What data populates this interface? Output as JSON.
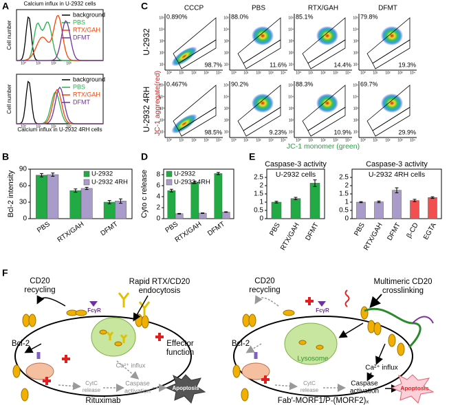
{
  "panel_labels": [
    "A",
    "B",
    "C",
    "D",
    "E",
    "F"
  ],
  "calcium_histograms": {
    "top_title": "Calcium influx in U-2932 cells",
    "bottom_xlabel": "Calcium influx in U-2932 4RH cells",
    "ylabel": "Cell number",
    "xticks": [
      "10⁰",
      "10¹",
      "10²",
      "10³"
    ],
    "legend": [
      {
        "name": "background",
        "color": "#000000"
      },
      {
        "name": "PBS",
        "color": "#22b14c"
      },
      {
        "name": "RTX/GAH",
        "color": "#ff4000"
      },
      {
        "name": "DFMT",
        "color": "#7030a0"
      }
    ]
  },
  "flow_cytometry": {
    "columns": [
      "CCCP",
      "PBS",
      "RTX/GAH",
      "DFMT"
    ],
    "rows": [
      "U-2932",
      "U-2932 4RH"
    ],
    "upper_left": [
      [
        "0.890%",
        "88.0%",
        "85.1%",
        "79.8%"
      ],
      [
        "0.467%",
        "90.2%",
        "88.3%",
        "69.7%"
      ]
    ],
    "lower_right": [
      [
        "98.7%",
        "11.6%",
        "14.4%",
        "19.3%"
      ],
      [
        "98.5%",
        "9.23%",
        "10.9%",
        "29.9%"
      ]
    ],
    "ylabel": "JC-1 aggregate(red)",
    "xlabel": "JC-1 monomer (green)",
    "xticks": [
      "10⁰",
      "10¹",
      "10²",
      "10³",
      "10⁴"
    ],
    "yticks": [
      "10¹",
      "10²",
      "10³",
      "10⁴",
      "10⁵"
    ]
  },
  "chart_data": [
    {
      "type": "bar",
      "ylabel": "Bcl-2 intensity",
      "categories": [
        "PBS",
        "RTX/GAH",
        "DFMT"
      ],
      "series": [
        {
          "name": "U-2932",
          "color": "#22aa44",
          "values": [
            79,
            51,
            30
          ],
          "errors": [
            3,
            3,
            3
          ]
        },
        {
          "name": "U-2932 4RH",
          "color": "#a99ccb",
          "values": [
            80,
            55,
            32
          ],
          "errors": [
            3,
            2,
            4
          ]
        }
      ],
      "ylim": [
        0,
        90
      ],
      "yticks": [
        0,
        30,
        60,
        90
      ],
      "legend": "upper right"
    },
    {
      "type": "bar",
      "ylabel": "Cyto c release",
      "categories": [
        "PBS",
        "RTX/GAH",
        "DFMT"
      ],
      "series": [
        {
          "name": "U-2932",
          "color": "#22aa44",
          "values": [
            5.1,
            6.6,
            8.2
          ],
          "errors": [
            0.25,
            0.2,
            0.2
          ]
        },
        {
          "name": "U-2932 4RH",
          "color": "#a99ccb",
          "values": [
            0.9,
            1.0,
            1.2
          ],
          "errors": [
            0.05,
            0.05,
            0.05
          ]
        }
      ],
      "ylim": [
        0,
        9
      ],
      "yticks": [
        0,
        2,
        4,
        6,
        8
      ],
      "legend": "upper left"
    },
    {
      "type": "bar",
      "title": "Caspase-3 activity",
      "subtitle": "U-2932 cells",
      "categories": [
        "PBS",
        "RTX/GAH",
        "DFMT"
      ],
      "values": [
        1.0,
        1.22,
        2.15
      ],
      "errors": [
        0.05,
        0.07,
        0.2
      ],
      "colors": [
        "#22aa44",
        "#22aa44",
        "#22aa44"
      ],
      "ylim": [
        0,
        3
      ],
      "yticks": [
        0,
        0.5,
        1,
        1.5,
        2,
        2.5
      ]
    },
    {
      "type": "bar",
      "title": "Caspase-3 activity",
      "subtitle": "U-2932 4RH cells",
      "categories": [
        "PBS",
        "RTX/GAH",
        "DFMT",
        "β-CD",
        "EGTA"
      ],
      "values": [
        1.0,
        1.02,
        1.72,
        1.1,
        1.28
      ],
      "errors": [
        0.03,
        0.05,
        0.15,
        0.07,
        0.05
      ],
      "colors": [
        "#a99ccb",
        "#a99ccb",
        "#a99ccb",
        "#f25050",
        "#f25050"
      ],
      "ylim": [
        0,
        3
      ],
      "yticks": [
        0,
        0.5,
        1,
        1.5,
        2,
        2.5
      ]
    }
  ],
  "diagram": {
    "left": {
      "recycling": [
        "CD20",
        "recycling"
      ],
      "endocytosis": [
        "Rapid RTX/CD20",
        "endocytosis"
      ],
      "fcr": "FcγR",
      "effector": [
        "Effector",
        "function"
      ],
      "bcl2": "Bcl-2",
      "calcium": "Ca²⁺ influx",
      "cytc": [
        "CytC",
        "release"
      ],
      "caspase": [
        "Caspase",
        "activation"
      ],
      "apoptosis": "Apoptosis",
      "caption": "Rituximab"
    },
    "right": {
      "crosslinking": [
        "Multimeric CD20",
        "crosslinking"
      ],
      "recycling": [
        "CD20",
        "recycling"
      ],
      "fcr": "FcγR",
      "bcl2": "Bcl-2",
      "lysosome": "Lysosome",
      "calcium": "Ca²⁺ influx",
      "cytc": [
        "CytC",
        "release"
      ],
      "caspase": [
        "Caspase",
        "activation"
      ],
      "apoptosis": "Apoptosis",
      "caption": "Fab′-MORF1/P-(MORF2)ₓ"
    }
  }
}
